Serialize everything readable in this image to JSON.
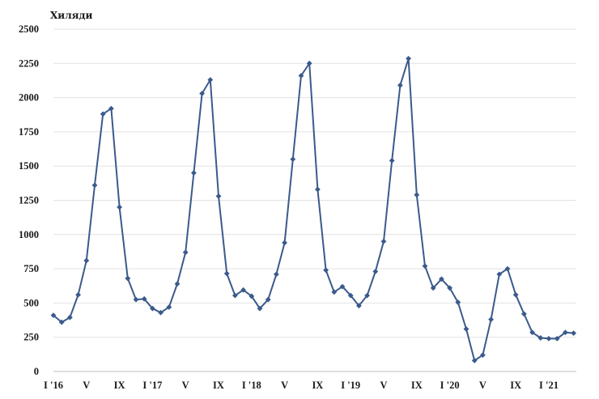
{
  "chart_data": {
    "type": "line",
    "unit_label": "Хиляди",
    "ylim": [
      0,
      2500
    ],
    "y_ticks": [
      0,
      250,
      500,
      750,
      1000,
      1250,
      1500,
      1750,
      2000,
      2250,
      2500
    ],
    "grid": true,
    "legend": "none",
    "x_tick_labels": [
      {
        "index": 0,
        "label": "I '16"
      },
      {
        "index": 4,
        "label": "V"
      },
      {
        "index": 8,
        "label": "IX"
      },
      {
        "index": 12,
        "label": "I '17"
      },
      {
        "index": 16,
        "label": "V"
      },
      {
        "index": 20,
        "label": "IX"
      },
      {
        "index": 24,
        "label": "I '18"
      },
      {
        "index": 28,
        "label": "V"
      },
      {
        "index": 32,
        "label": "IX"
      },
      {
        "index": 36,
        "label": "I '19"
      },
      {
        "index": 40,
        "label": "V"
      },
      {
        "index": 44,
        "label": "IX"
      },
      {
        "index": 48,
        "label": "I '20"
      },
      {
        "index": 52,
        "label": "V"
      },
      {
        "index": 56,
        "label": "IX"
      },
      {
        "index": 60,
        "label": "I '21"
      }
    ],
    "series": [
      {
        "color": "#3a5a8c",
        "values": [
          410,
          360,
          395,
          560,
          810,
          1360,
          1880,
          1920,
          1200,
          680,
          525,
          530,
          460,
          430,
          470,
          640,
          870,
          1450,
          2030,
          2130,
          1280,
          715,
          555,
          595,
          550,
          460,
          525,
          710,
          940,
          1550,
          2160,
          2250,
          1330,
          740,
          580,
          620,
          555,
          480,
          555,
          730,
          950,
          1540,
          2090,
          2285,
          1290,
          770,
          610,
          675,
          610,
          505,
          310,
          80,
          120,
          380,
          710,
          750,
          560,
          420,
          285,
          245,
          240,
          240,
          285,
          280
        ]
      }
    ]
  }
}
